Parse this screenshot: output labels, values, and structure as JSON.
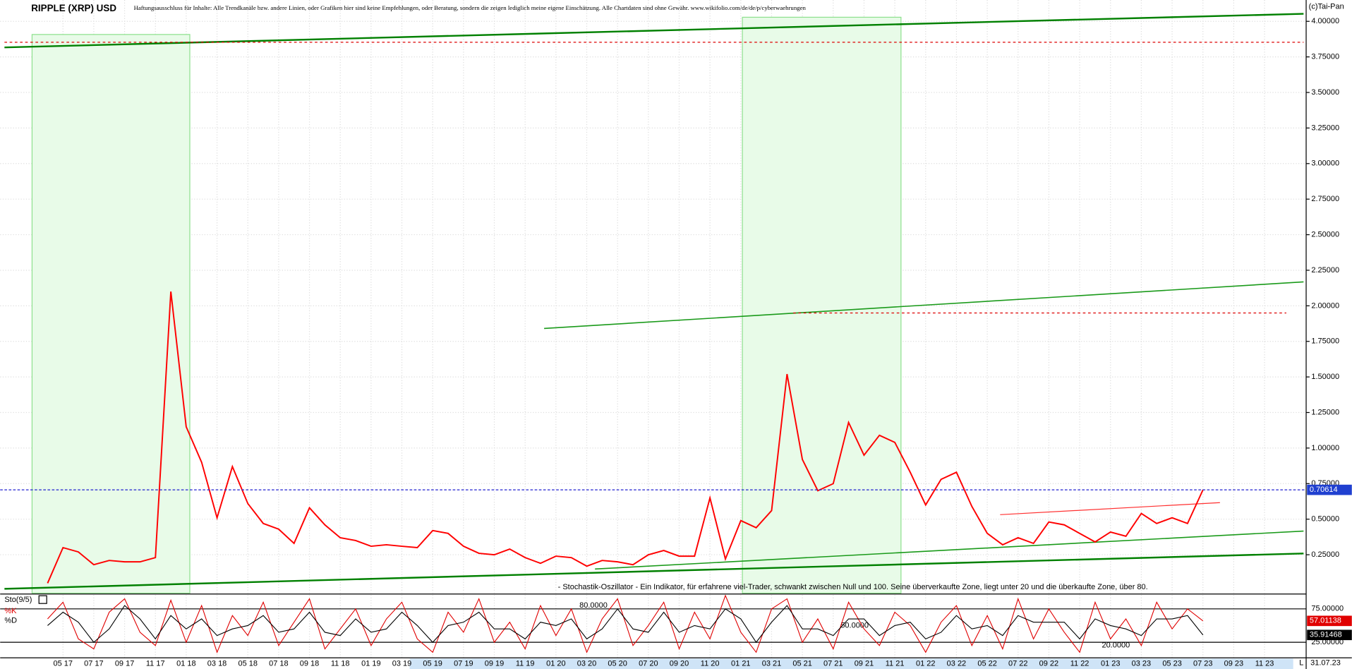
{
  "chart_data": [
    {
      "type": "line",
      "title": "RIPPLE (XRP) USD",
      "subtitle": "Haftungsausschluss für Inhalte: Alle Trendkanäle bzw. andere Linien, oder Grafiken hier sind keine Empfehlungen, oder Beratung, sondern die zeigen lediglich meine eigene Einschätzung. Alle Chartdaten sind ohne Gewähr.  www.wikifolio.com/de/de/p/cyberwaehrungen",
      "source": "(c)Tai-Pan",
      "annotation": "- Stochastik-Oszillator - Ein Indikator, für erfahrene viel-Trader, schwankt zwischen Null und 100. Seine überverkaufte Zone, liegt unter 20 und die überkaufte Zone, über 80.",
      "x_end_label": "31.07.23",
      "categories": [
        null,
        "05 17",
        null,
        "07 17",
        null,
        "09 17",
        null,
        "11 17",
        null,
        "01 18",
        null,
        "03 18",
        null,
        "05 18",
        null,
        "07 18",
        null,
        "09 18",
        null,
        "11 18",
        null,
        "01 19",
        null,
        "03 19",
        null,
        "05 19",
        null,
        "07 19",
        null,
        "09 19",
        null,
        "11 19",
        null,
        "01 20",
        null,
        "03 20",
        null,
        "05 20",
        null,
        "07 20",
        null,
        "09 20",
        null,
        "11 20",
        null,
        "01 21",
        null,
        "03 21",
        null,
        "05 21",
        null,
        "07 21",
        null,
        "09 21",
        null,
        "11 21",
        null,
        "01 22",
        null,
        "03 22",
        null,
        "05 22",
        null,
        "07 22",
        null,
        "09 22",
        null,
        "11 22",
        null,
        "01 23",
        null,
        "03 23",
        null,
        "05 23",
        null,
        "07 23",
        null,
        "09 23",
        null,
        "11 23",
        null
      ],
      "values": [
        0.05,
        0.3,
        0.27,
        0.18,
        0.21,
        0.2,
        0.2,
        0.23,
        2.1,
        1.15,
        0.9,
        0.51,
        0.87,
        0.61,
        0.47,
        0.43,
        0.33,
        0.58,
        0.46,
        0.37,
        0.35,
        0.31,
        0.32,
        0.31,
        0.3,
        0.42,
        0.4,
        0.31,
        0.26,
        0.25,
        0.29,
        0.23,
        0.19,
        0.24,
        0.23,
        0.17,
        0.21,
        0.2,
        0.18,
        0.25,
        0.28,
        0.24,
        0.24,
        0.65,
        0.22,
        0.49,
        0.44,
        0.56,
        1.52,
        0.92,
        0.7,
        0.75,
        1.18,
        0.95,
        1.09,
        1.04,
        0.83,
        0.6,
        0.78,
        0.83,
        0.59,
        0.4,
        0.32,
        0.37,
        0.33,
        0.48,
        0.46,
        0.4,
        0.34,
        0.41,
        0.38,
        0.54,
        0.47,
        0.51,
        0.47,
        0.70614,
        null,
        null,
        null,
        null,
        null
      ],
      "color": "#ff0000",
      "ylim": [
        -0.02,
        4.15
      ],
      "yticks": [
        {
          "value": 0.25,
          "label": "0.25000"
        },
        {
          "value": 0.5,
          "label": "0.50000"
        },
        {
          "value": 0.75,
          "label": "0.75000"
        },
        {
          "value": 1,
          "label": "1.00000"
        },
        {
          "value": 1.25,
          "label": "1.25000"
        },
        {
          "value": 1.5,
          "label": "1.50000"
        },
        {
          "value": 1.75,
          "label": "1.75000"
        },
        {
          "value": 2,
          "label": "2.00000"
        },
        {
          "value": 2.25,
          "label": "2.25000"
        },
        {
          "value": 2.5,
          "label": "2.50000"
        },
        {
          "value": 2.75,
          "label": "2.75000"
        },
        {
          "value": 3,
          "label": "3.00000"
        },
        {
          "value": 3.25,
          "label": "3.25000"
        },
        {
          "value": 3.5,
          "label": "3.50000"
        },
        {
          "value": 3.75,
          "label": "3.75000"
        },
        {
          "value": 4,
          "label": "4.00000"
        }
      ],
      "grid": true
    },
    {
      "type": "line",
      "title": "Sto(9/5)",
      "series": [
        {
          "name": "%K",
          "color": "#e00000",
          "values": [
            60,
            85,
            30,
            15,
            70,
            90,
            40,
            20,
            88,
            25,
            80,
            10,
            65,
            35,
            85,
            20,
            55,
            90,
            15,
            45,
            75,
            20,
            60,
            85,
            30,
            10,
            70,
            40,
            90,
            25,
            55,
            15,
            80,
            35,
            75,
            10,
            60,
            90,
            20,
            50,
            85,
            15,
            70,
            30,
            95,
            40,
            10,
            75,
            90,
            25,
            60,
            15,
            85,
            45,
            20,
            70,
            50,
            10,
            55,
            80,
            20,
            65,
            15,
            90,
            30,
            75,
            40,
            10,
            85,
            30,
            60,
            20,
            85,
            45,
            75,
            57.01138,
            null,
            null,
            null,
            null,
            null
          ]
        },
        {
          "name": "%D",
          "color": "#000000",
          "values": [
            50,
            70,
            55,
            25,
            45,
            80,
            60,
            30,
            65,
            45,
            60,
            35,
            45,
            50,
            65,
            40,
            45,
            70,
            40,
            35,
            60,
            40,
            45,
            70,
            50,
            25,
            50,
            55,
            70,
            45,
            45,
            30,
            55,
            50,
            60,
            30,
            45,
            75,
            45,
            40,
            70,
            40,
            50,
            45,
            75,
            60,
            25,
            55,
            80,
            45,
            45,
            35,
            60,
            60,
            35,
            50,
            55,
            30,
            40,
            65,
            45,
            50,
            35,
            65,
            55,
            55,
            55,
            30,
            60,
            50,
            45,
            35,
            60,
            60,
            65,
            35.91468,
            null,
            null,
            null,
            null,
            null
          ]
        }
      ],
      "levels": [
        {
          "value": 80,
          "label": "80.0000"
        },
        {
          "value": 50,
          "label": "50.0000"
        },
        {
          "value": 20,
          "label": "20.0000"
        }
      ],
      "ylim": [
        3,
        96
      ],
      "yticks": [
        {
          "value": 25,
          "label": "25.00000"
        },
        {
          "value": 75,
          "label": "75.00000"
        }
      ]
    }
  ]
}
